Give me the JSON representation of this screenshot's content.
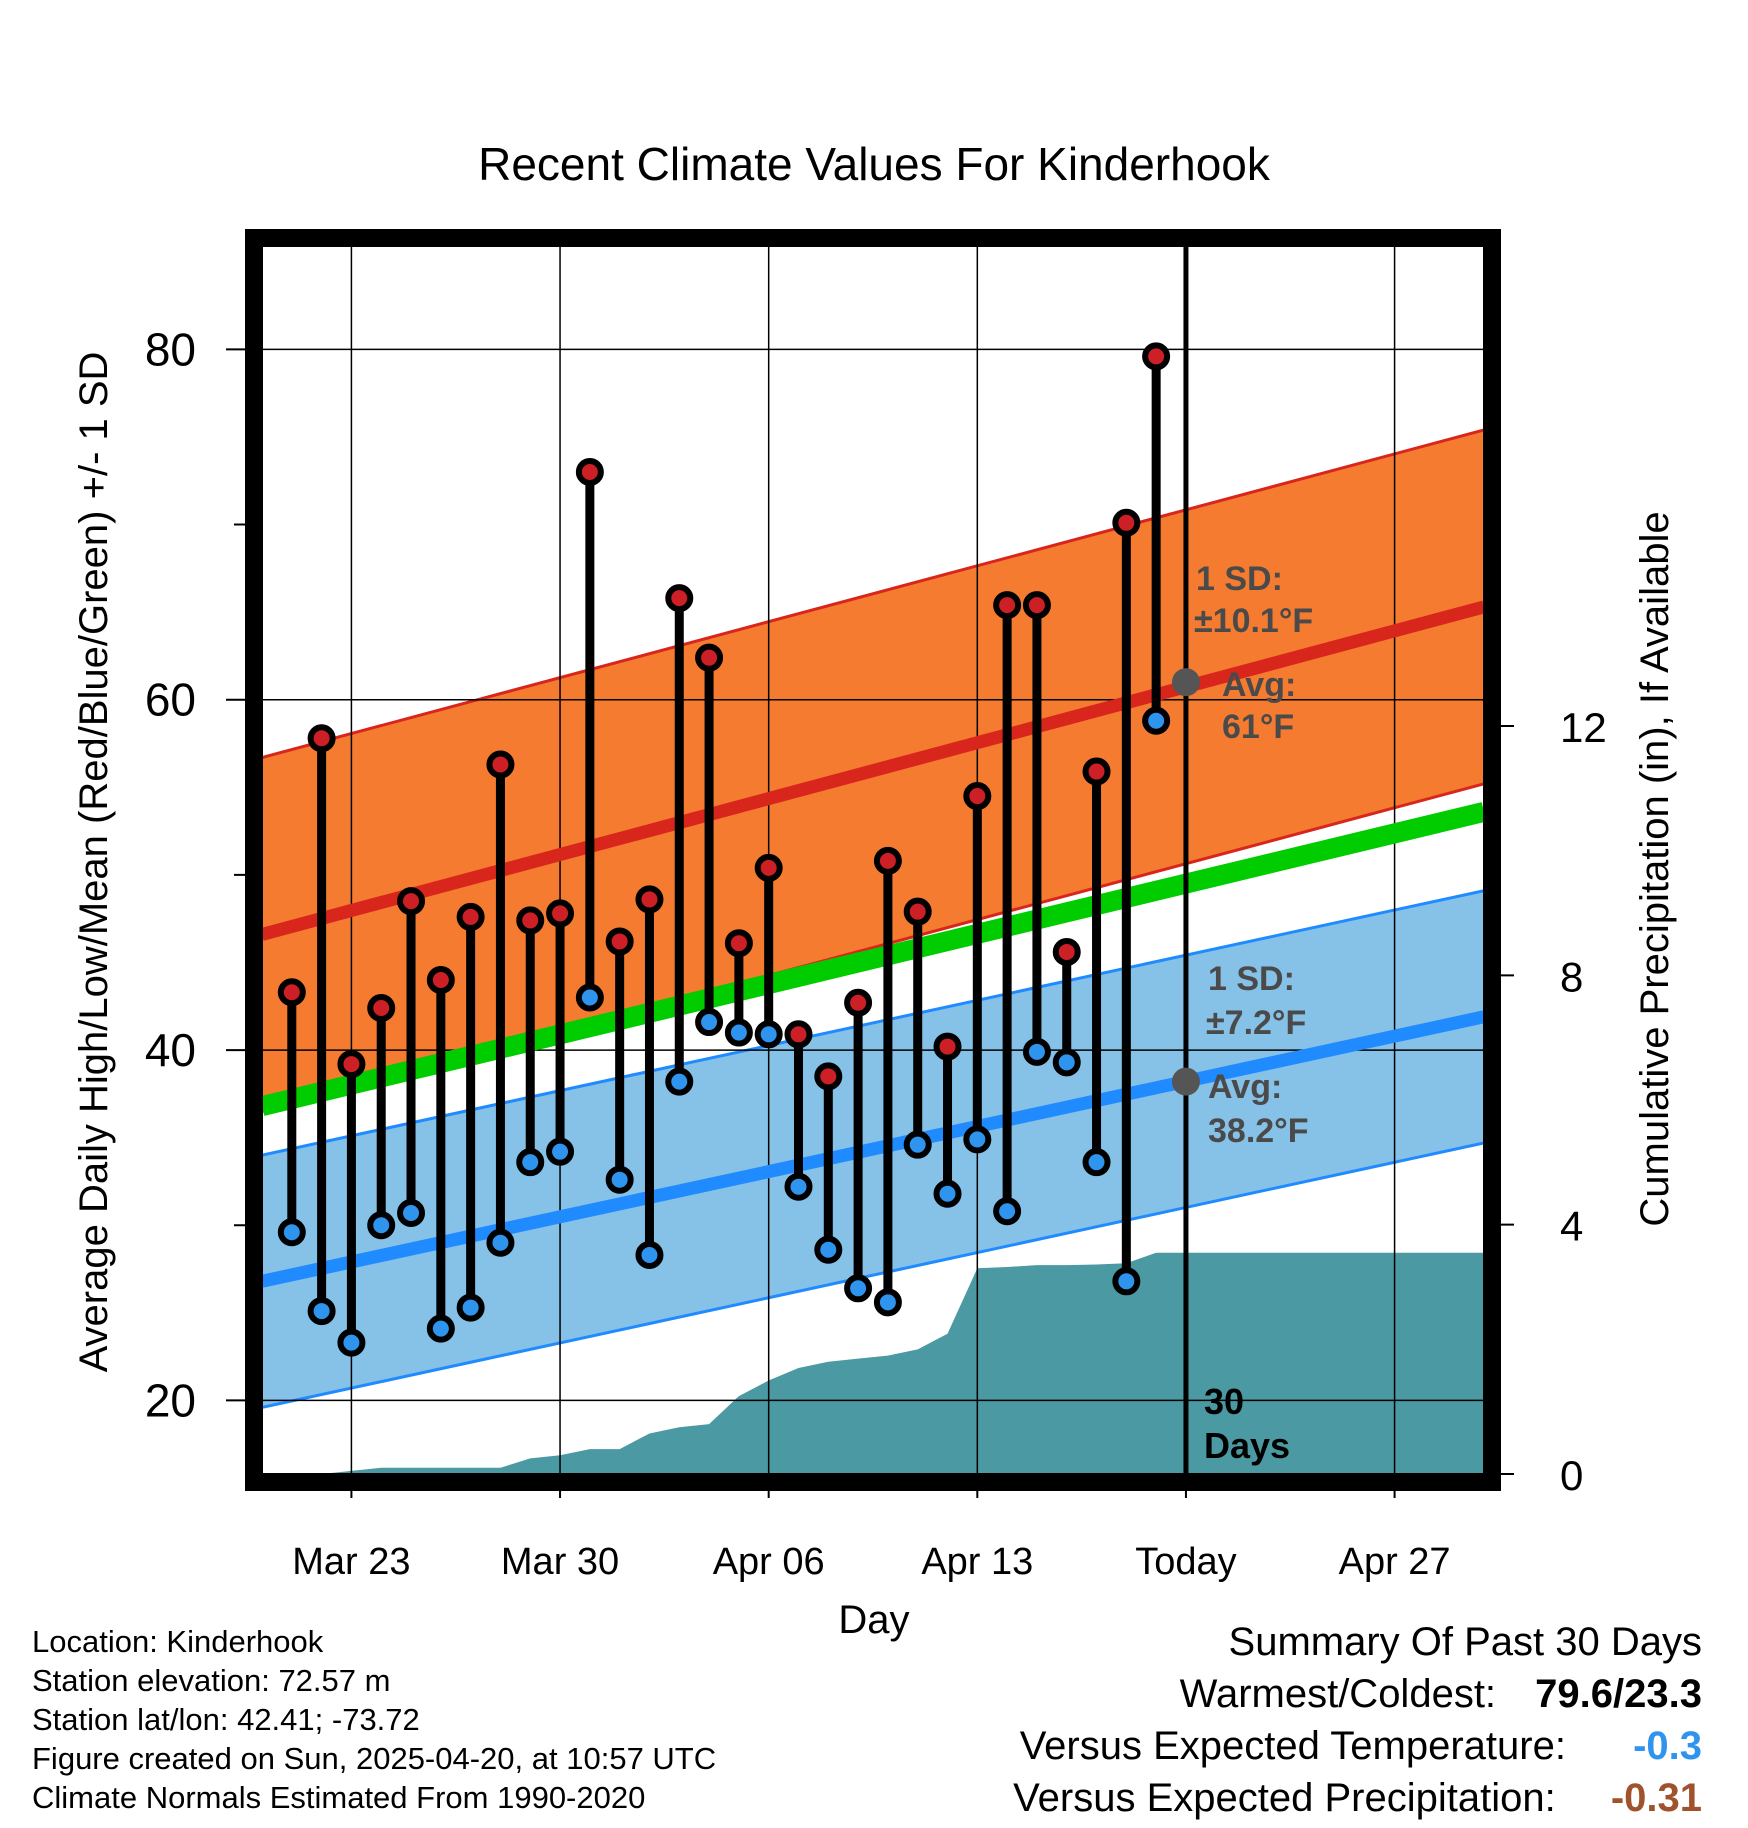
{
  "chart_data": {
    "type": "line",
    "title": "Recent Climate Values For Kinderhook",
    "xlabel": "Day",
    "ylabel": "Average Daily High/Low/Mean (Red/Blue/Green) +/- 1 SD",
    "y2label": "Cumulative Precipitation (in), If Available",
    "x_ticks": [
      "Mar 23",
      "Mar 30",
      "Apr 06",
      "Apr 13",
      "Today",
      "Apr 27"
    ],
    "y_ticks": [
      "20",
      "40",
      "60",
      "80"
    ],
    "y2_ticks": [
      "0",
      "4",
      "8",
      "12"
    ],
    "ylim": [
      15.8,
      85.9
    ],
    "y2lim": [
      0,
      19.7
    ],
    "grid": true,
    "xlim_days": [
      "Mar 20",
      "Apr 30"
    ],
    "today": "Apr 20",
    "marker_dates": [
      "Mar 21",
      "Mar 22",
      "Mar 23",
      "Mar 24",
      "Mar 25",
      "Mar 26",
      "Mar 27",
      "Mar 28",
      "Mar 29",
      "Mar 30",
      "Mar 31",
      "Apr 01",
      "Apr 02",
      "Apr 03",
      "Apr 04",
      "Apr 05",
      "Apr 06",
      "Apr 07",
      "Apr 08",
      "Apr 09",
      "Apr 10",
      "Apr 11",
      "Apr 12",
      "Apr 13",
      "Apr 14",
      "Apr 15",
      "Apr 16",
      "Apr 17",
      "Apr 18",
      "Apr 19"
    ],
    "series": [
      {
        "name": "High",
        "color": "#cc1f26",
        "values": [
          43.3,
          57.8,
          39.2,
          42.4,
          48.5,
          44.0,
          47.6,
          56.3,
          47.4,
          47.8,
          73.0,
          46.2,
          48.6,
          65.8,
          62.4,
          46.1,
          50.4,
          40.9,
          38.5,
          42.7,
          50.8,
          47.9,
          40.2,
          54.5,
          65.4,
          65.4,
          45.6,
          55.9,
          70.1,
          79.6
        ]
      },
      {
        "name": "Low",
        "color": "#2f94ee",
        "values": [
          29.6,
          25.1,
          23.3,
          30.0,
          30.7,
          24.1,
          25.3,
          29.0,
          33.6,
          34.2,
          43.0,
          32.6,
          28.3,
          38.2,
          41.6,
          41.0,
          40.9,
          32.2,
          28.6,
          26.4,
          25.6,
          34.6,
          31.8,
          34.9,
          30.8,
          39.9,
          39.3,
          33.6,
          26.8,
          58.8
        ]
      },
      {
        "name": "Mean (normal)",
        "color": "#00cc00",
        "range": [
          36.8,
          53.6
        ]
      },
      {
        "name": "Normal High",
        "color": "#d9261c",
        "range": [
          46.6,
          65.3
        ],
        "sd": 10.1
      },
      {
        "name": "Normal Low",
        "color": "#1f8bff",
        "range": [
          26.8,
          41.9
        ],
        "sd": 7.2
      },
      {
        "name": "Cumulative Precipitation",
        "color": "#4a99a3",
        "points": [
          [
            22,
            0.0
          ],
          [
            23,
            0.05
          ],
          [
            24,
            0.1
          ],
          [
            25,
            0.1
          ],
          [
            26,
            0.1
          ],
          [
            27,
            0.1
          ],
          [
            28,
            0.1
          ],
          [
            29,
            0.25
          ],
          [
            30,
            0.3
          ],
          [
            31,
            0.4
          ],
          [
            32,
            0.4
          ],
          [
            33,
            0.65
          ],
          [
            34,
            0.75
          ],
          [
            35,
            0.8
          ],
          [
            36,
            1.25
          ],
          [
            37,
            1.5
          ],
          [
            38,
            1.7
          ],
          [
            39,
            1.8
          ],
          [
            40,
            1.85
          ],
          [
            41,
            1.9
          ],
          [
            42,
            2.0
          ],
          [
            43,
            2.25
          ],
          [
            44,
            3.3
          ],
          [
            45,
            3.32
          ],
          [
            46,
            3.35
          ],
          [
            47,
            3.35
          ],
          [
            48,
            3.36
          ],
          [
            49,
            3.38
          ],
          [
            50,
            3.55
          ],
          [
            51,
            3.55
          ],
          [
            61,
            3.55
          ]
        ]
      }
    ],
    "annotations": {
      "high_sd": "1 SD:",
      "high_sd_val": "±10.1°F",
      "high_avg": "Avg:",
      "high_avg_val": "61°F",
      "low_sd": "1 SD:",
      "low_sd_val": "±7.2°F",
      "low_avg": "Avg:",
      "low_avg_val": "38.2°F",
      "high_avg_num": 61.0,
      "low_avg_num": 38.2,
      "days_num": "30",
      "days_word": "Days"
    }
  },
  "footer": {
    "location": "Location: Kinderhook",
    "elevation": "Station elevation: 72.57 m",
    "latlon": "Station lat/lon: 42.41; -73.72",
    "created": "Figure created on Sun, 2025-04-20, at 10:57 UTC",
    "normals": "Climate Normals Estimated From 1990-2020"
  },
  "summary": {
    "heading": "Summary Of Past 30 Days",
    "warm_cold_label": "Warmest/Coldest:",
    "warm_cold_value": "79.6/23.3",
    "temp_label": "Versus Expected Temperature:",
    "temp_value": "-0.3",
    "temp_color": "#2f94ee",
    "precip_label": "Versus Expected Precipitation:",
    "precip_value": "-0.31",
    "precip_color": "#a0522d"
  }
}
